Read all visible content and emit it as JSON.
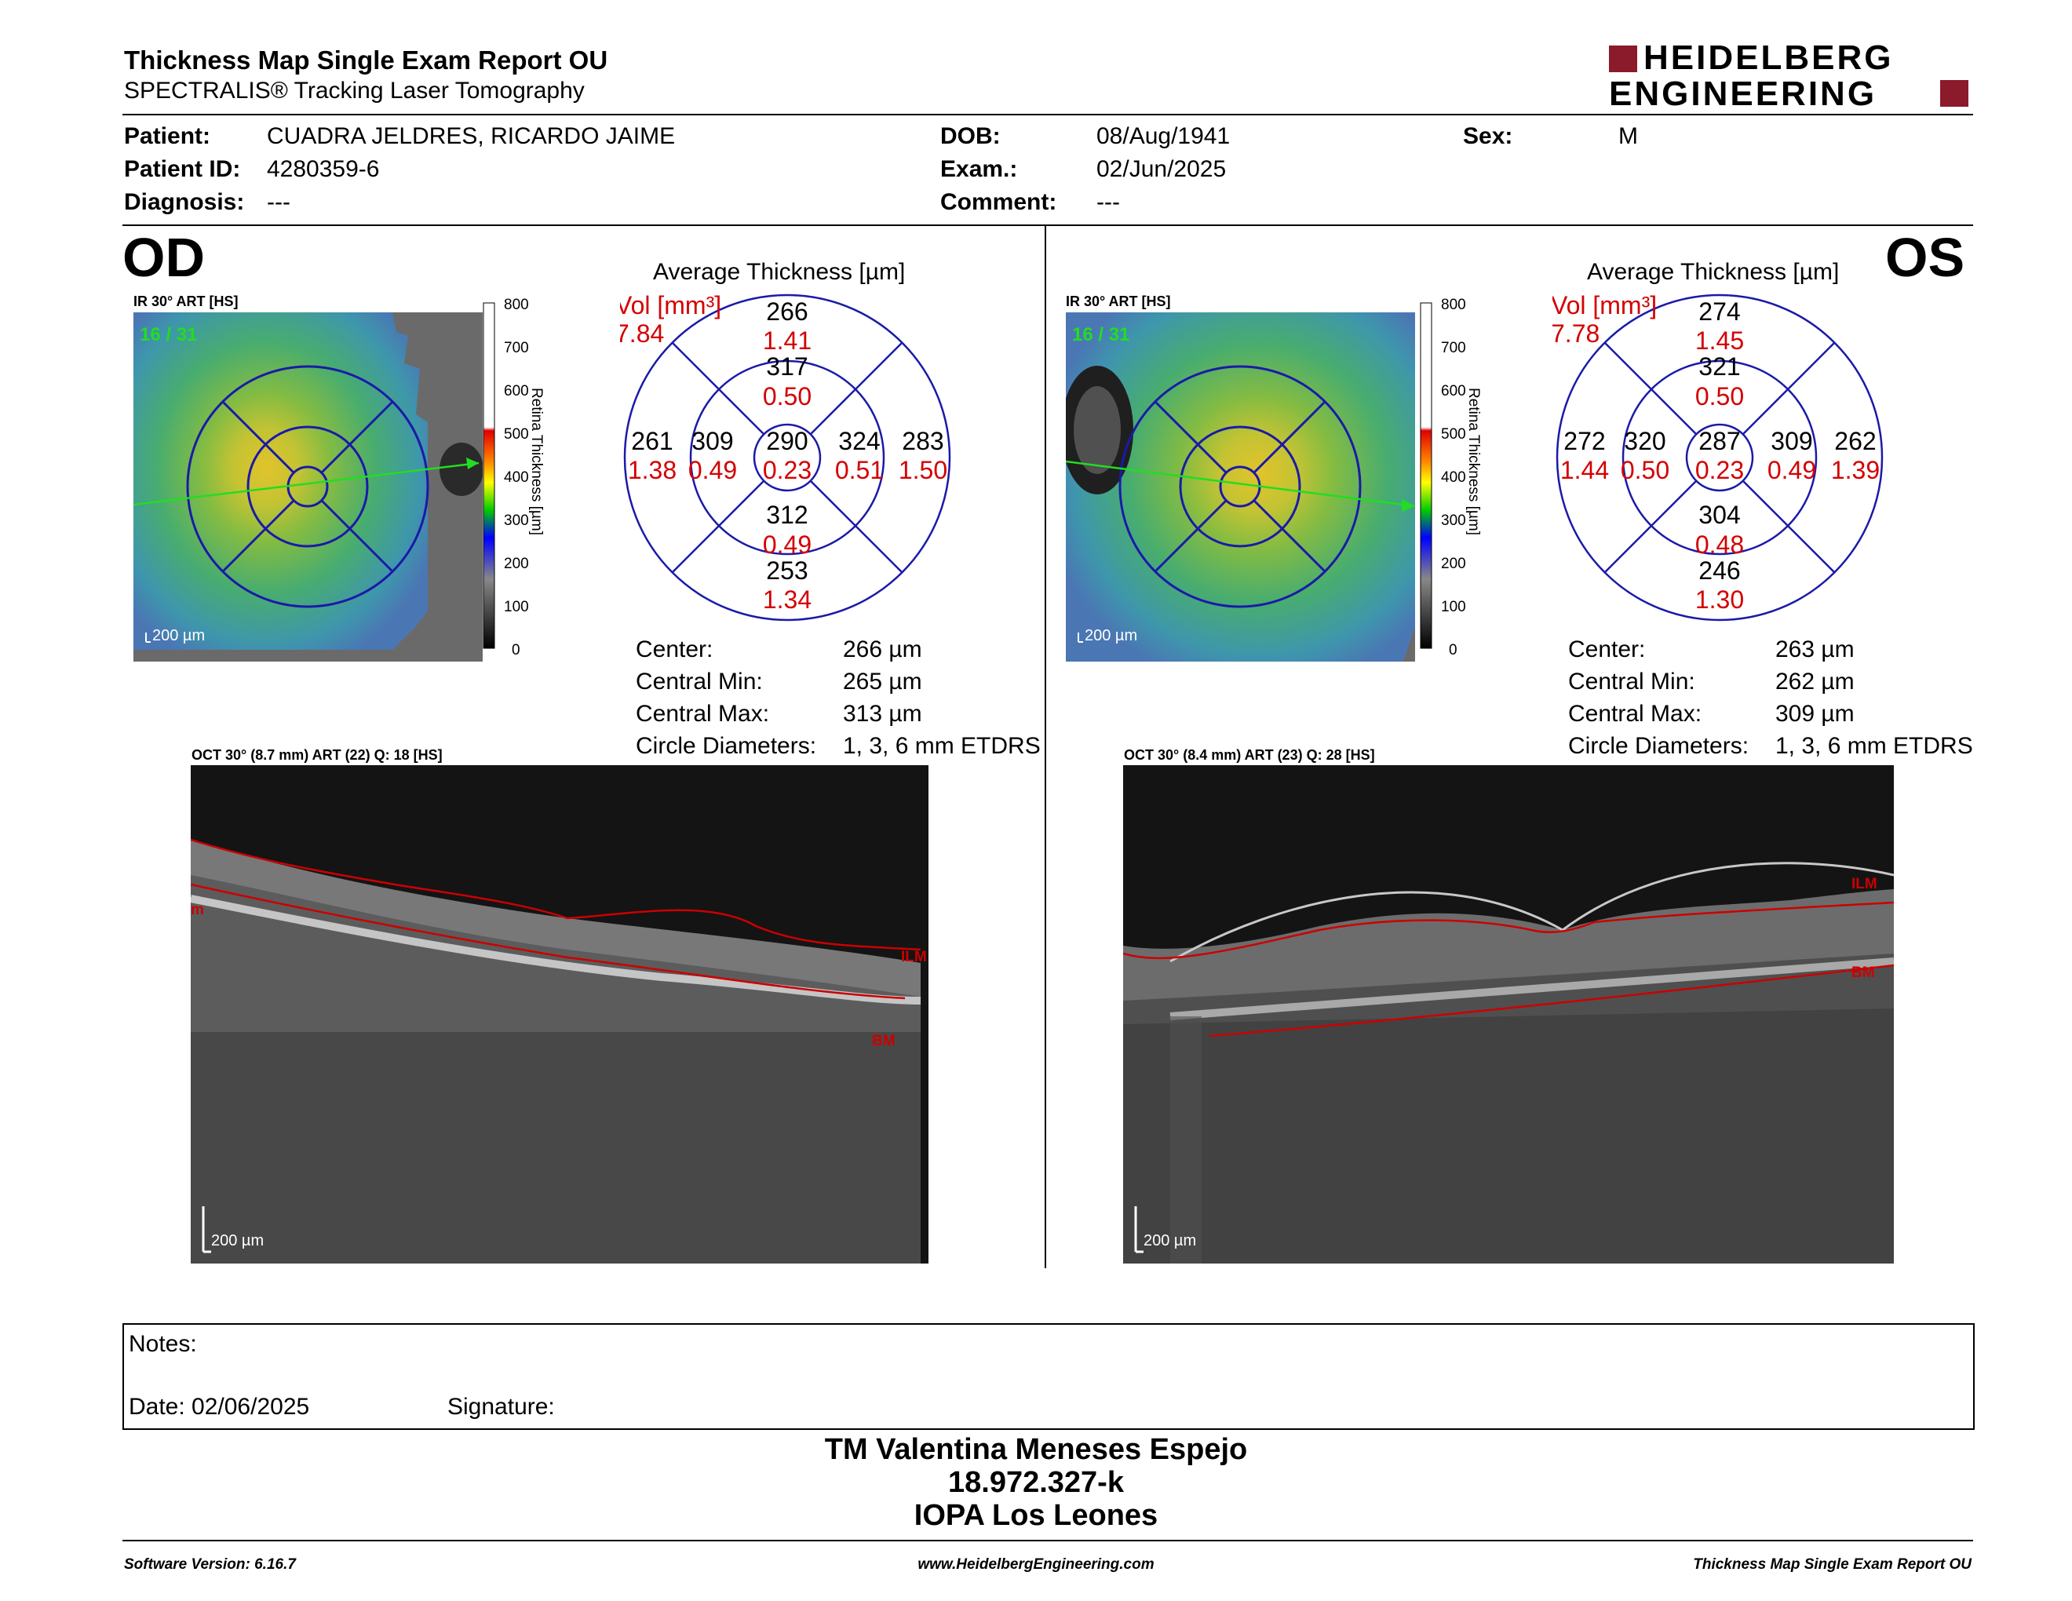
{
  "header": {
    "title": "Thickness Map Single Exam Report OU",
    "subtitle": "SPECTRALIS® Tracking Laser Tomography",
    "logo_line1": "HEIDELBERG",
    "logo_line2": "ENGINEERING"
  },
  "patient": {
    "patient_label": "Patient:",
    "patient_value": "CUADRA JELDRES, RICARDO JAIME",
    "id_label": "Patient ID:",
    "id_value": "4280359-6",
    "diagnosis_label": "Diagnosis:",
    "diagnosis_value": "---",
    "dob_label": "DOB:",
    "dob_value": "08/Aug/1941",
    "exam_label": "Exam.:",
    "exam_value": "02/Jun/2025",
    "comment_label": "Comment:",
    "comment_value": "---",
    "sex_label": "Sex:",
    "sex_value": "M"
  },
  "od": {
    "eye": "OD",
    "ir_label": "IR 30° ART [HS]",
    "frames": "16 / 31",
    "scale": "200 µm",
    "avg_title": "Average Thickness [µm]",
    "vol_label": "Vol [mm³]",
    "vol_value": "7.84",
    "sectors": {
      "outer_sup": [
        "266",
        "1.41"
      ],
      "inner_sup": [
        "317",
        "0.50"
      ],
      "outer_temp": [
        "261",
        "1.38"
      ],
      "inner_temp": [
        "309",
        "0.49"
      ],
      "center": [
        "290",
        "0.23"
      ],
      "inner_nasal": [
        "324",
        "0.51"
      ],
      "outer_nasal": [
        "283",
        "1.50"
      ],
      "inner_inf": [
        "312",
        "0.49"
      ],
      "outer_inf": [
        "253",
        "1.34"
      ]
    },
    "stats": {
      "center_label": "Center:",
      "center_value": "266 µm",
      "min_label": "Central Min:",
      "min_value": "265 µm",
      "max_label": "Central Max:",
      "max_value": "313 µm",
      "circ_label": "Circle Diameters:",
      "circ_value": "1, 3, 6 mm ETDRS"
    },
    "oct_label": "OCT 30° (8.7 mm) ART (22) Q: 18 [HS]",
    "oct_scale": "200 µm",
    "ilm": "ILM",
    "bm": "BM",
    "edge_m": "m"
  },
  "os": {
    "eye": "OS",
    "ir_label": "IR 30° ART [HS]",
    "frames": "16 / 31",
    "scale": "200 µm",
    "avg_title": "Average Thickness [µm]",
    "vol_label": "Vol [mm³]",
    "vol_value": "7.78",
    "sectors": {
      "outer_sup": [
        "274",
        "1.45"
      ],
      "inner_sup": [
        "321",
        "0.50"
      ],
      "outer_temp": [
        "272",
        "1.44"
      ],
      "inner_temp": [
        "320",
        "0.50"
      ],
      "center": [
        "287",
        "0.23"
      ],
      "inner_nasal": [
        "309",
        "0.49"
      ],
      "outer_nasal": [
        "262",
        "1.39"
      ],
      "inner_inf": [
        "304",
        "0.48"
      ],
      "outer_inf": [
        "246",
        "1.30"
      ]
    },
    "stats": {
      "center_label": "Center:",
      "center_value": "263 µm",
      "min_label": "Central Min:",
      "min_value": "262 µm",
      "max_label": "Central Max:",
      "max_value": "309 µm",
      "circ_label": "Circle Diameters:",
      "circ_value": "1, 3, 6 mm ETDRS"
    },
    "oct_label": "OCT 30° (8.4 mm) ART (23) Q: 28 [HS]",
    "oct_scale": "200 µm",
    "ilm": "ILM",
    "bm": "BM"
  },
  "colorbar": {
    "ticks": [
      "800",
      "700",
      "600",
      "500",
      "400",
      "300",
      "200",
      "100",
      "0"
    ],
    "label": "Retina  Thickness [µm]"
  },
  "notes": {
    "notes_label": "Notes:",
    "date_label": "Date: 02/06/2025",
    "signature_label": "Signature:"
  },
  "signature": {
    "name": "TM Valentina Meneses Espejo",
    "rut": "18.972.327-k",
    "org": "IOPA Los Leones"
  },
  "footer": {
    "software": "Software Version: 6.16.7",
    "website": "www.HeidelbergEngineering.com",
    "report": "Thickness Map Single Exam Report OU"
  },
  "colors": {
    "ring": "#1a1aa8",
    "volume": "#d40000",
    "frames": "#22dd22",
    "logo": "#8b1a2b"
  }
}
